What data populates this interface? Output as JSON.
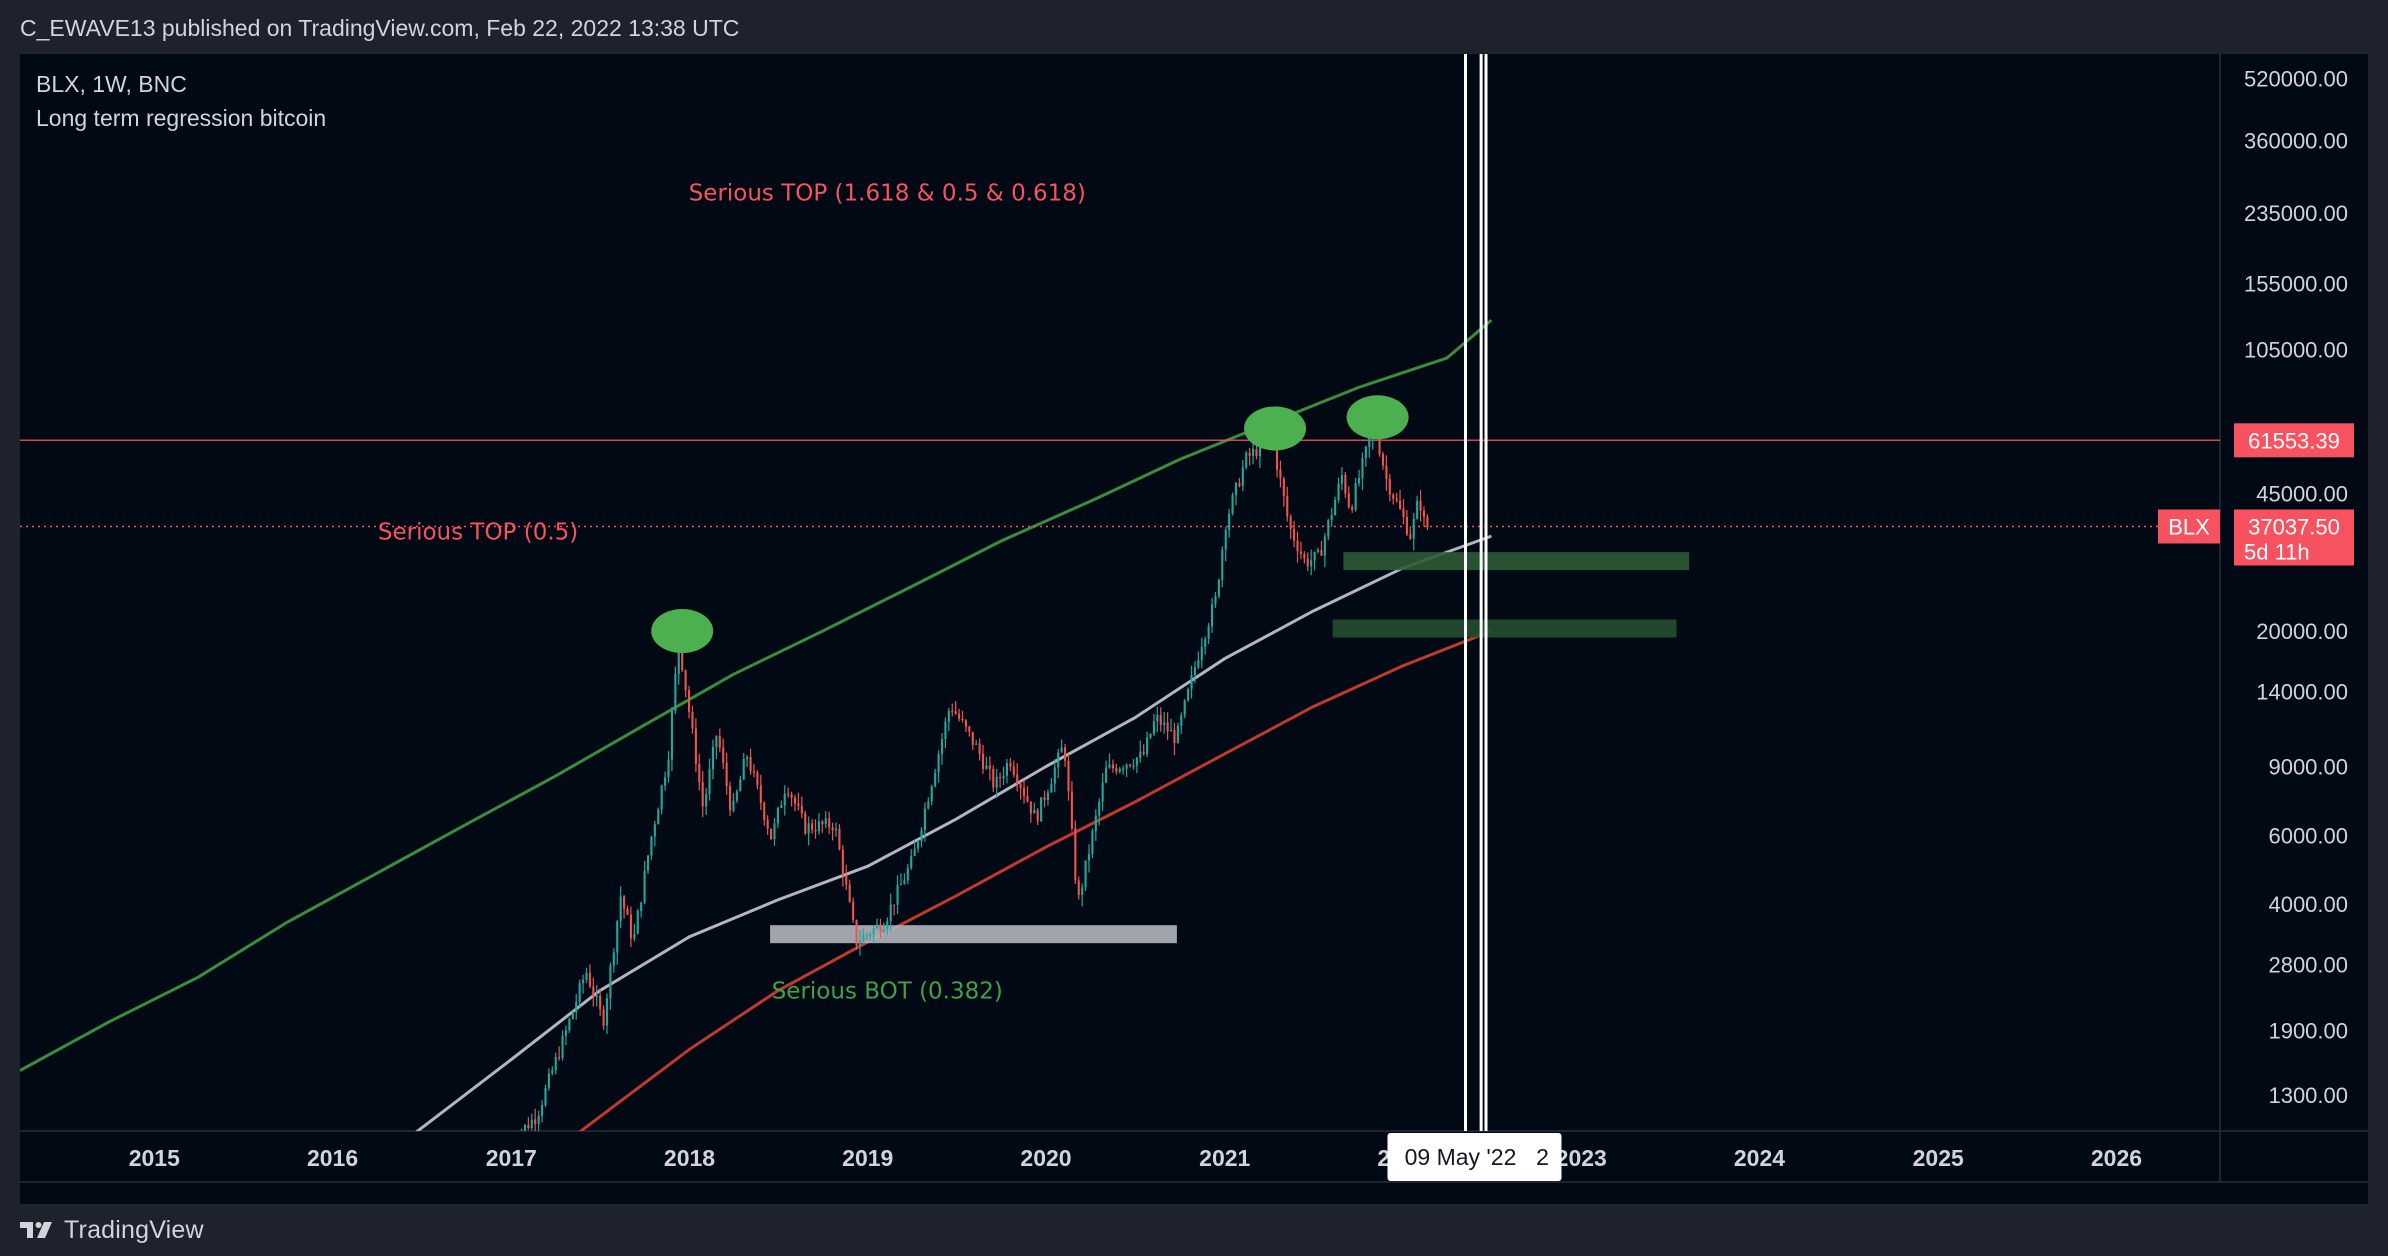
{
  "header": {
    "published": "C_EWAVE13 published on TradingView.com, Feb 22, 2022 13:38 UTC"
  },
  "footer": {
    "brand": "TradingView",
    "logo_icon": "tradingview-logo-icon"
  },
  "chart_data": {
    "type": "candlestick",
    "symbol_line": "BLX, 1W, BNC",
    "title": "Long term regression bitcoin",
    "y_scale": "log",
    "ylim": [
      1050,
      600000
    ],
    "xlim": [
      "2014-04-01",
      "2026-08-01"
    ],
    "y_ticks": [
      {
        "value": 520000,
        "label": "520000.00"
      },
      {
        "value": 360000,
        "label": "360000.00"
      },
      {
        "value": 235000,
        "label": "235000.00"
      },
      {
        "value": 155000,
        "label": "155000.00"
      },
      {
        "value": 105000,
        "label": "105000.00"
      },
      {
        "value": 45000,
        "label": "45000.00"
      },
      {
        "value": 20000,
        "label": "20000.00"
      },
      {
        "value": 14000,
        "label": "14000.00"
      },
      {
        "value": 9000,
        "label": "9000.00"
      },
      {
        "value": 6000,
        "label": "6000.00"
      },
      {
        "value": 4000,
        "label": "4000.00"
      },
      {
        "value": 2800,
        "label": "2800.00"
      },
      {
        "value": 1900,
        "label": "1900.00"
      },
      {
        "value": 1300,
        "label": "1300.00"
      }
    ],
    "x_ticks": [
      {
        "date": "2015-01-01",
        "label": "2015"
      },
      {
        "date": "2016-01-01",
        "label": "2016"
      },
      {
        "date": "2017-01-01",
        "label": "2017"
      },
      {
        "date": "2018-01-01",
        "label": "2018"
      },
      {
        "date": "2019-01-01",
        "label": "2019"
      },
      {
        "date": "2020-01-01",
        "label": "2020"
      },
      {
        "date": "2021-01-01",
        "label": "2021"
      },
      {
        "date": "2022-01-01",
        "label": "2022"
      },
      {
        "date": "2023-01-01",
        "label": "2023"
      },
      {
        "date": "2024-01-01",
        "label": "2024"
      },
      {
        "date": "2025-01-01",
        "label": "2025"
      },
      {
        "date": "2026-01-01",
        "label": "2026"
      }
    ],
    "price_path": [
      [
        "2017-01-01",
        970
      ],
      [
        "2017-03-01",
        1150
      ],
      [
        "2017-05-01",
        1900
      ],
      [
        "2017-06-10",
        2700
      ],
      [
        "2017-07-15",
        2000
      ],
      [
        "2017-08-20",
        4200
      ],
      [
        "2017-09-15",
        3200
      ],
      [
        "2017-10-20",
        5800
      ],
      [
        "2017-11-25",
        9500
      ],
      [
        "2017-12-17",
        19000
      ],
      [
        "2018-02-05",
        7000
      ],
      [
        "2018-03-05",
        11000
      ],
      [
        "2018-04-05",
        6800
      ],
      [
        "2018-05-05",
        9700
      ],
      [
        "2018-06-25",
        5900
      ],
      [
        "2018-07-25",
        8200
      ],
      [
        "2018-09-01",
        6300
      ],
      [
        "2018-11-01",
        6400
      ],
      [
        "2018-12-15",
        3200
      ],
      [
        "2019-02-10",
        3600
      ],
      [
        "2019-04-10",
        5200
      ],
      [
        "2019-06-26",
        13000
      ],
      [
        "2019-08-20",
        10000
      ],
      [
        "2019-09-25",
        8000
      ],
      [
        "2019-10-26",
        9400
      ],
      [
        "2019-12-18",
        6600
      ],
      [
        "2020-02-14",
        10300
      ],
      [
        "2020-03-13",
        4000
      ],
      [
        "2020-05-10",
        8800
      ],
      [
        "2020-07-25",
        9600
      ],
      [
        "2020-08-20",
        12000
      ],
      [
        "2020-10-01",
        10600
      ],
      [
        "2020-11-20",
        18500
      ],
      [
        "2020-12-20",
        24000
      ],
      [
        "2021-01-10",
        38000
      ],
      [
        "2021-02-20",
        55000
      ],
      [
        "2021-04-14",
        63000
      ],
      [
        "2021-05-20",
        37000
      ],
      [
        "2021-06-22",
        30000
      ],
      [
        "2021-07-20",
        31000
      ],
      [
        "2021-09-05",
        50000
      ],
      [
        "2021-09-22",
        41000
      ],
      [
        "2021-11-10",
        68000
      ],
      [
        "2021-12-05",
        49000
      ],
      [
        "2022-01-24",
        35000
      ],
      [
        "2022-02-10",
        44000
      ],
      [
        "2022-02-22",
        37000
      ]
    ],
    "lines": [
      {
        "name": "upper-regression",
        "color": "#388e3c",
        "points": [
          [
            "2014-04-01",
            1500
          ],
          [
            "2014-10-01",
            2000
          ],
          [
            "2015-04-01",
            2600
          ],
          [
            "2015-10-01",
            3600
          ],
          [
            "2016-04-01",
            4800
          ],
          [
            "2016-10-01",
            6400
          ],
          [
            "2017-04-01",
            8500
          ],
          [
            "2017-10-01",
            11500
          ],
          [
            "2018-04-01",
            15500
          ],
          [
            "2018-10-01",
            20000
          ],
          [
            "2019-04-01",
            26000
          ],
          [
            "2019-10-01",
            34000
          ],
          [
            "2020-04-01",
            43000
          ],
          [
            "2020-10-01",
            55000
          ],
          [
            "2021-04-01",
            68000
          ],
          [
            "2021-10-01",
            84000
          ],
          [
            "2022-04-01",
            100000
          ],
          [
            "2022-07-01",
            125000
          ]
        ]
      },
      {
        "name": "middle-regression",
        "color": "#b2b5be",
        "points": [
          [
            "2016-06-01",
            1000
          ],
          [
            "2017-01-01",
            1600
          ],
          [
            "2017-07-01",
            2400
          ],
          [
            "2018-01-01",
            3300
          ],
          [
            "2018-07-01",
            4100
          ],
          [
            "2019-01-01",
            5000
          ],
          [
            "2019-07-01",
            6600
          ],
          [
            "2020-01-01",
            9000
          ],
          [
            "2020-07-01",
            12000
          ],
          [
            "2021-01-01",
            17000
          ],
          [
            "2021-07-01",
            22500
          ],
          [
            "2022-01-01",
            29000
          ],
          [
            "2022-07-01",
            35000
          ]
        ]
      },
      {
        "name": "lower-regression",
        "color": "#c0392b",
        "points": [
          [
            "2017-05-01",
            1000
          ],
          [
            "2018-01-01",
            1700
          ],
          [
            "2018-07-01",
            2400
          ],
          [
            "2019-01-01",
            3200
          ],
          [
            "2019-07-01",
            4200
          ],
          [
            "2020-01-01",
            5600
          ],
          [
            "2020-07-01",
            7300
          ],
          [
            "2021-01-01",
            9700
          ],
          [
            "2021-07-01",
            12800
          ],
          [
            "2022-01-01",
            16300
          ],
          [
            "2022-07-01",
            20000
          ]
        ]
      }
    ],
    "resistance": {
      "value": 61553.39,
      "label": "61553.39",
      "color": "#f7525f"
    },
    "last_price": {
      "value": 37037.5,
      "label": "37037.50",
      "countdown": "5d 11h",
      "symbol": "BLX",
      "color": "#f7525f"
    },
    "vertical_lines": [
      "2022-05-09",
      "2022-06-10",
      "2022-06-20"
    ],
    "crosshair_label": "09 May '22",
    "crosshair_obscured_label": "2",
    "zones": [
      {
        "kind": "support-box",
        "from": "2018-06-15",
        "to": "2020-09-25",
        "value": 3350,
        "color": "#b2b5be"
      },
      {
        "kind": "support-box",
        "from": "2021-09-01",
        "to": "2023-08-10",
        "value": 30200,
        "color": "#2e5b36"
      },
      {
        "kind": "support-box",
        "from": "2021-08-10",
        "to": "2023-07-15",
        "value": 20300,
        "color": "#244f2e"
      }
    ],
    "markers": [
      {
        "date": "2017-12-17",
        "value": 20000,
        "color": "#4caf50"
      },
      {
        "date": "2021-04-14",
        "value": 66000,
        "color": "#4caf50"
      },
      {
        "date": "2021-11-10",
        "value": 70500,
        "color": "#4caf50"
      }
    ],
    "annotations": [
      {
        "text": "Serious TOP (1.618 & 0.5 & 0.618)",
        "date": "2019-02-10",
        "value": 265000,
        "color": "#f7525f"
      },
      {
        "text": "Serious TOP (0.5)",
        "date": "2016-10-25",
        "value": 36000,
        "color": "#f7525f"
      },
      {
        "text": "Serious BOT (0.382)",
        "date": "2019-02-10",
        "value": 2400,
        "color": "#43a047"
      }
    ],
    "colors": {
      "up": "#26a69a",
      "down": "#ef5350",
      "background": "#010914",
      "axis_text": "#d1d4dc"
    },
    "grid": false,
    "legend": "none"
  }
}
